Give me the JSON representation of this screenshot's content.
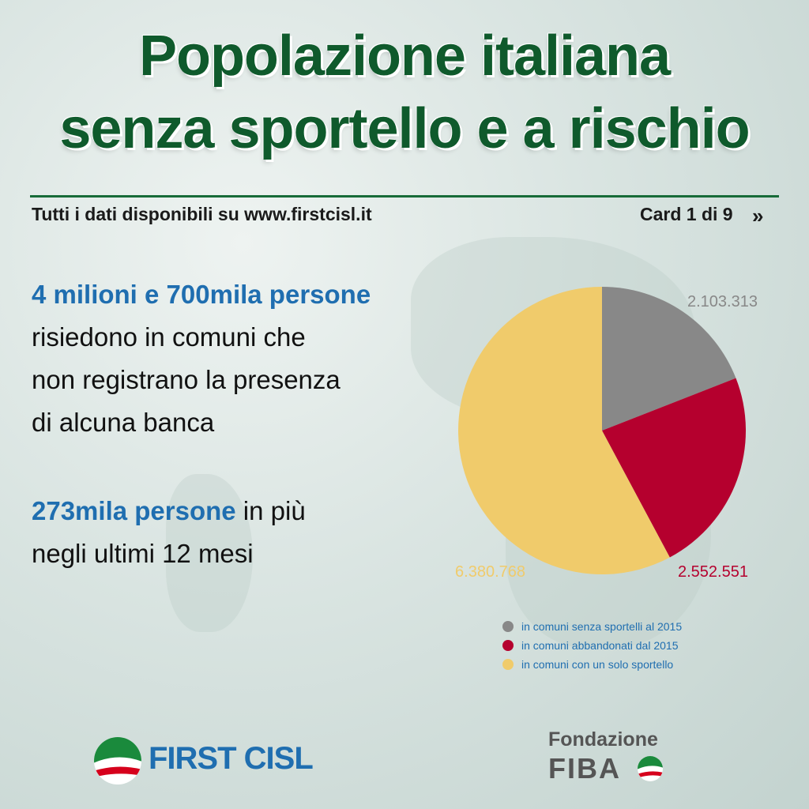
{
  "header": {
    "title_line1": "Popolazione italiana",
    "title_line2": "senza sportello e a rischio",
    "source_note": "Tutti i dati disponibili su www.firstcisl.it",
    "card_label": "Card 1 di 9",
    "chevron": "»"
  },
  "body": {
    "p1_highlight": "4 milioni e 700mila persone",
    "p1_line2": "risiedono in comuni che",
    "p1_line3": "non registrano la presenza",
    "p1_line4": "di alcuna banca",
    "p2_highlight": "273mila persone",
    "p2_rest": " in più",
    "p2_line2": "negli ultimi 12 mesi"
  },
  "chart_data": {
    "type": "pie",
    "slices": [
      {
        "label": "in comuni senza sportelli al 2015",
        "value": 2103313,
        "value_label": "2.103.313",
        "color": "#888888"
      },
      {
        "label": "in comuni abbandonati dal 2015",
        "value": 2552551,
        "value_label": "2.552.551",
        "color": "#b5002e"
      },
      {
        "label": "in comuni con un solo sportello",
        "value": 6380768,
        "value_label": "6.380.768",
        "color": "#f0cb6b"
      }
    ],
    "legend_position": "bottom-right"
  },
  "colors": {
    "title_green": "#0f5a2c",
    "accent_blue": "#1f6eb0"
  },
  "logos": {
    "first_cisl": "FIRST CISL",
    "fondazione": "Fondazione",
    "fiba": "FIBA"
  }
}
